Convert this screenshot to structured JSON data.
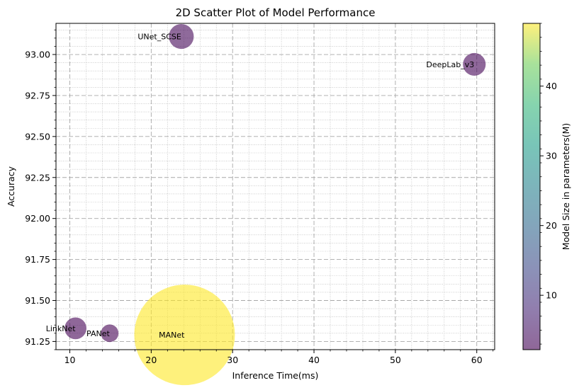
{
  "chart_data": {
    "type": "scatter",
    "title": "2D Scatter Plot of Model Performance",
    "xlabel": "Inference Time(ms)",
    "ylabel": "Accuracy",
    "xlim": [
      8.3,
      62.2
    ],
    "ylim": [
      91.2,
      93.19
    ],
    "xticks": [
      10,
      20,
      30,
      40,
      50,
      60
    ],
    "yticks": [
      91.25,
      91.5,
      91.75,
      92.0,
      92.25,
      92.5,
      92.75,
      93.0
    ],
    "ytick_labels": [
      "91.25",
      "91.50",
      "91.75",
      "92.00",
      "92.25",
      "92.50",
      "92.75",
      "93.00"
    ],
    "grid": true,
    "colorbar": {
      "label": "Model Size in parameters(M)",
      "range": [
        2.2,
        49
      ],
      "ticks": [
        10,
        20,
        30,
        40
      ],
      "colormap": "viridis",
      "alpha": 0.6
    },
    "points": [
      {
        "name": "UNet_SCSE",
        "x": 23.7,
        "y": 93.11,
        "size": 3.0
      },
      {
        "name": "DeepLab_v3",
        "x": 59.7,
        "y": 92.94,
        "size": 2.5
      },
      {
        "name": "LinkNet",
        "x": 10.7,
        "y": 91.33,
        "size": 2.3
      },
      {
        "name": "PANet",
        "x": 14.9,
        "y": 91.3,
        "size": 1.5
      },
      {
        "name": "MANet",
        "x": 24.1,
        "y": 91.29,
        "size": 49.0
      }
    ]
  }
}
